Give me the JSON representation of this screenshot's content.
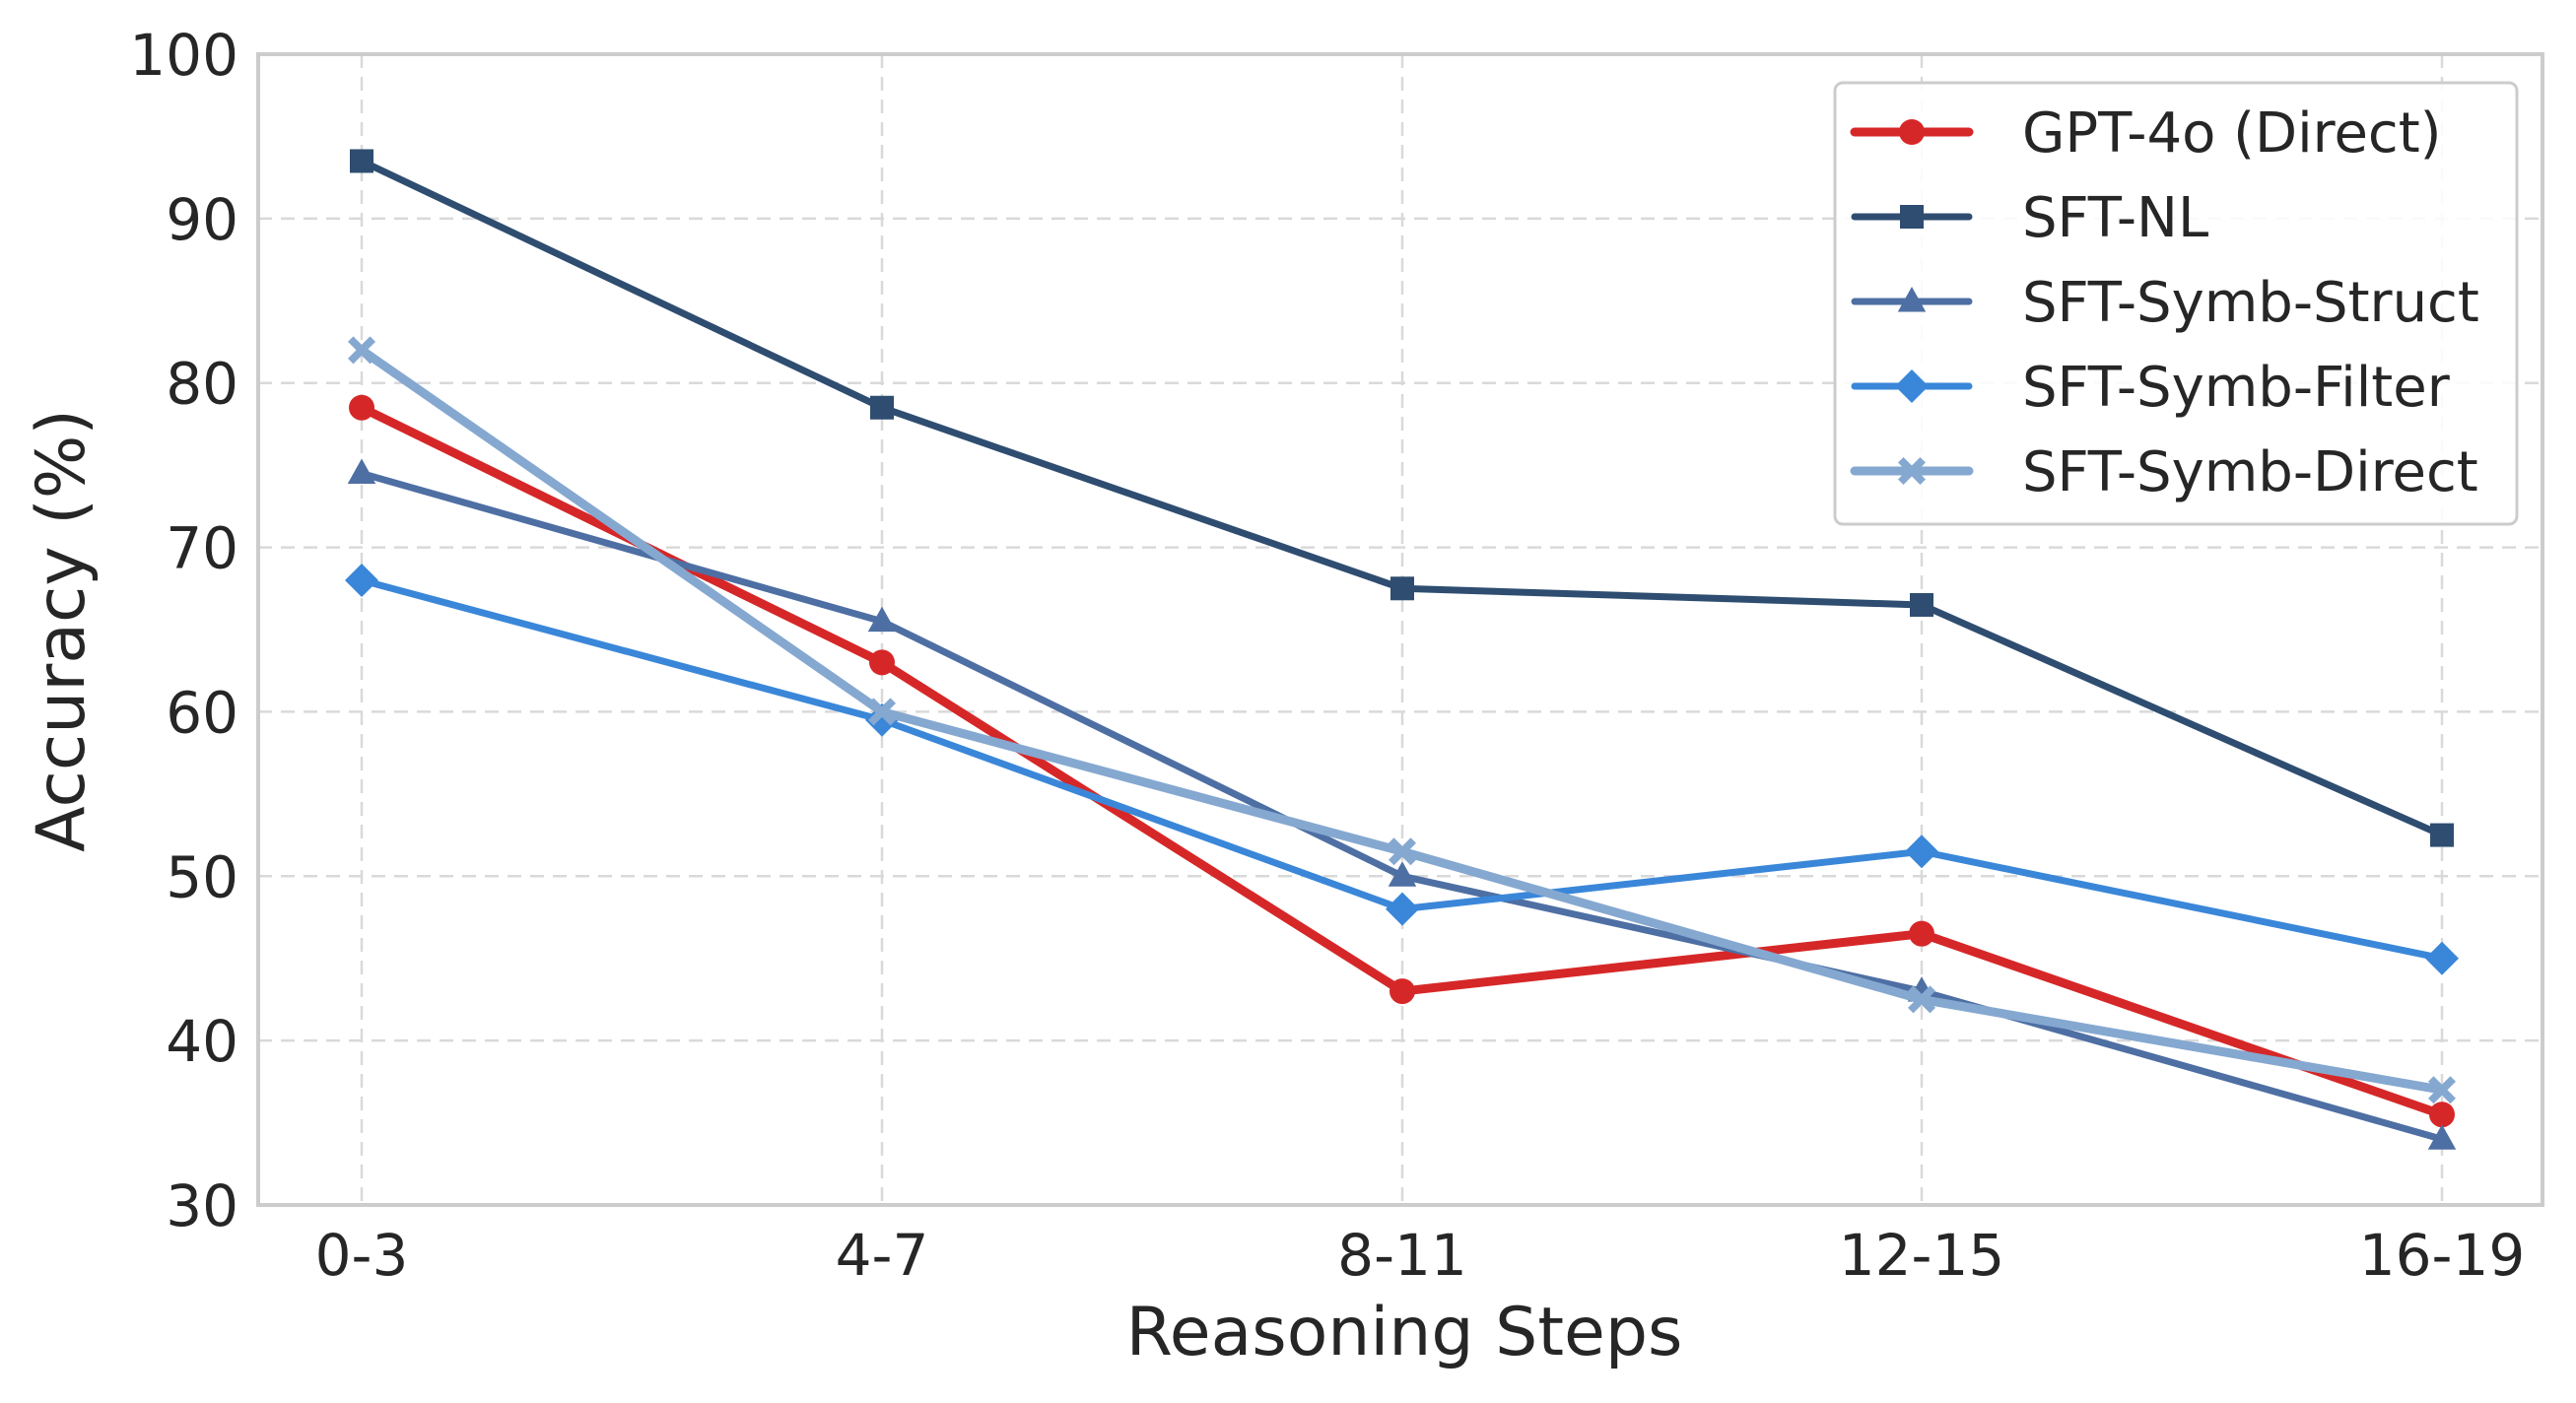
{
  "chart_data": {
    "type": "line",
    "title": "",
    "xlabel": "Reasoning Steps",
    "ylabel": "Accuracy (%)",
    "categories": [
      "0-3",
      "4-7",
      "8-11",
      "12-15",
      "16-19"
    ],
    "ylim": [
      30,
      100
    ],
    "yticks": [
      30,
      40,
      50,
      60,
      70,
      80,
      90,
      100
    ],
    "grid": true,
    "legend_position": "top-right",
    "series": [
      {
        "name": "GPT-4o (Direct)",
        "values": [
          78.5,
          63.0,
          43.0,
          46.5,
          35.5
        ],
        "color": "#d62728",
        "marker": "circle"
      },
      {
        "name": "SFT-NL",
        "values": [
          93.5,
          78.5,
          67.5,
          66.5,
          52.5
        ],
        "color": "#2e4d70",
        "marker": "square"
      },
      {
        "name": "SFT-Symb-Struct",
        "values": [
          74.5,
          65.5,
          50.0,
          43.0,
          34.0
        ],
        "color": "#4e6fa3",
        "marker": "triangle"
      },
      {
        "name": "SFT-Symb-Filter",
        "values": [
          68.0,
          59.5,
          48.0,
          51.5,
          45.0
        ],
        "color": "#3a87d9",
        "marker": "diamond"
      },
      {
        "name": "SFT-Symb-Direct",
        "values": [
          82.0,
          60.0,
          51.5,
          42.5,
          37.0
        ],
        "color": "#85a8d0",
        "marker": "x-filled"
      }
    ]
  }
}
